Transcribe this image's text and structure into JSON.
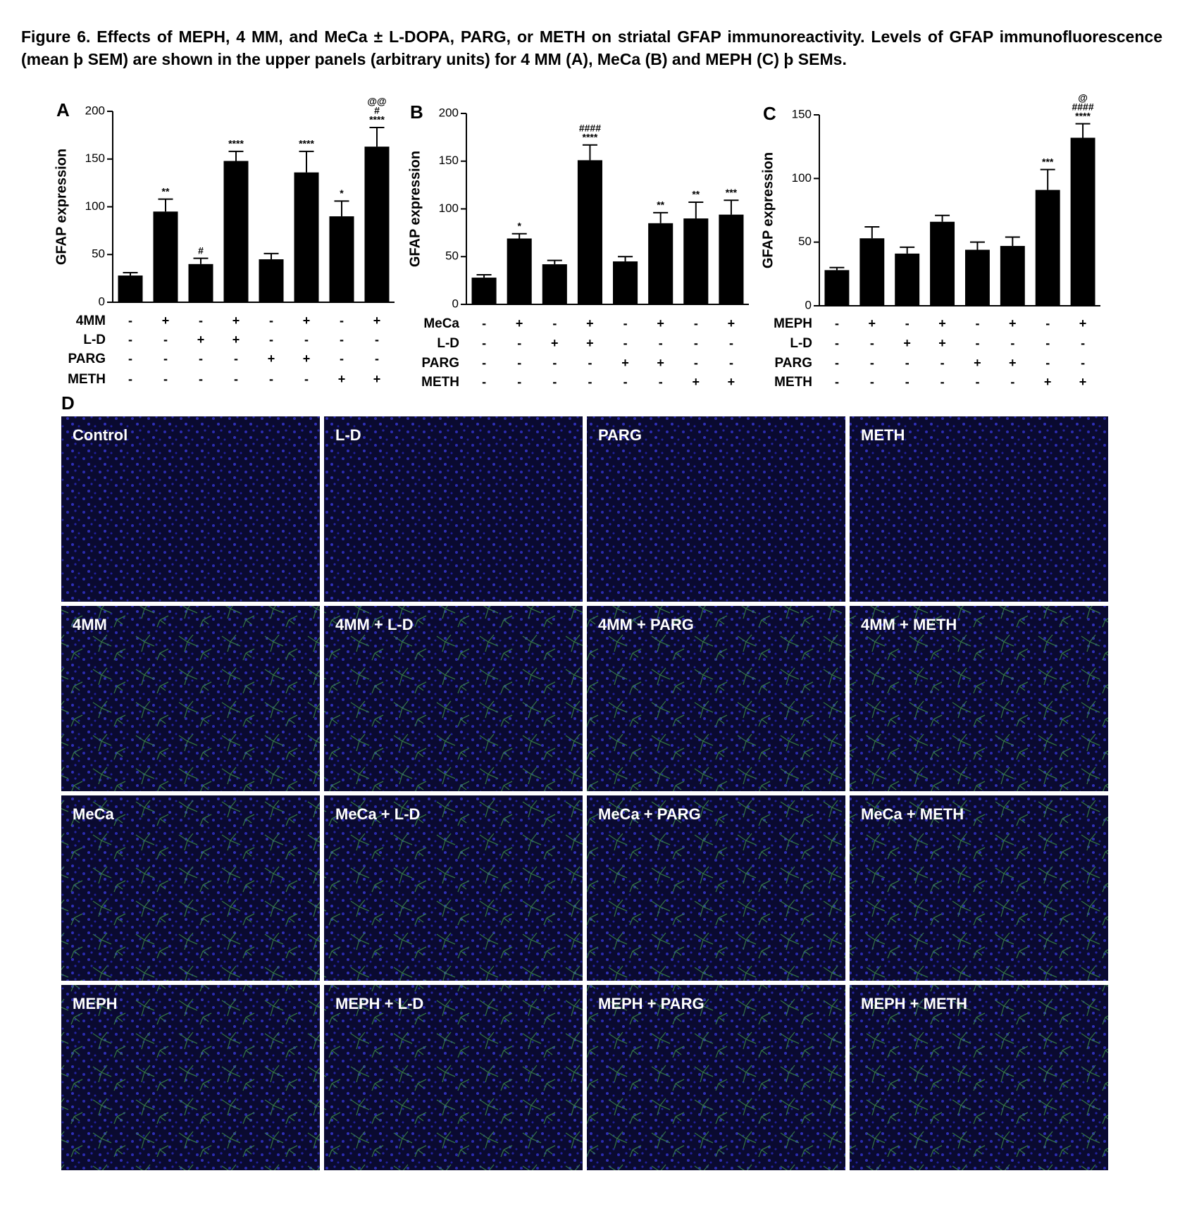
{
  "caption": "Figure 6. Effects of MEPH, 4 MM, and MeCa ± L-DOPA, PARG, or METH on striatal GFAP immunoreactivity. Levels of GFAP immunofluorescence (mean þ SEM) are shown in the upper panels (arbitrary units) for 4 MM (A), MeCa (B) and MEPH (C) þ SEMs.",
  "chart_data": [
    {
      "type": "bar",
      "panel": "A",
      "y_label": "GFAP expression",
      "color": "#000000",
      "values": [
        28,
        95,
        40,
        148,
        45,
        136,
        90,
        163
      ],
      "errors": [
        3,
        13,
        6,
        10,
        6,
        22,
        16,
        20
      ],
      "annotations": [
        null,
        [
          "**"
        ],
        [
          "#"
        ],
        [
          "****"
        ],
        null,
        [
          "****"
        ],
        [
          "*"
        ],
        [
          "@@",
          "#",
          "****"
        ]
      ],
      "ylim": [
        0,
        200
      ],
      "yticks": [
        0,
        50,
        100,
        150,
        200
      ],
      "conditions": [
        {
          "name": "4MM",
          "marks": [
            "-",
            "+",
            "-",
            "+",
            "-",
            "+",
            "-",
            "+"
          ]
        },
        {
          "name": "L-D",
          "marks": [
            "-",
            "-",
            "+",
            "+",
            "-",
            "-",
            "-",
            "-"
          ]
        },
        {
          "name": "PARG",
          "marks": [
            "-",
            "-",
            "-",
            "-",
            "+",
            "+",
            "-",
            "-"
          ]
        },
        {
          "name": "METH",
          "marks": [
            "-",
            "-",
            "-",
            "-",
            "-",
            "-",
            "+",
            "+"
          ]
        }
      ]
    },
    {
      "type": "bar",
      "panel": "B",
      "y_label": "GFAP expression",
      "color": "#000000",
      "values": [
        28,
        69,
        42,
        151,
        45,
        85,
        90,
        94
      ],
      "errors": [
        3,
        5,
        4,
        16,
        5,
        11,
        17,
        15
      ],
      "annotations": [
        null,
        [
          "*"
        ],
        null,
        [
          "####",
          "****"
        ],
        null,
        [
          "**"
        ],
        [
          "**"
        ],
        [
          "***"
        ]
      ],
      "ylim": [
        0,
        200
      ],
      "yticks": [
        0,
        50,
        100,
        150,
        200
      ],
      "conditions": [
        {
          "name": "MeCa",
          "marks": [
            "-",
            "+",
            "-",
            "+",
            "-",
            "+",
            "-",
            "+"
          ]
        },
        {
          "name": "L-D",
          "marks": [
            "-",
            "-",
            "+",
            "+",
            "-",
            "-",
            "-",
            "-"
          ]
        },
        {
          "name": "PARG",
          "marks": [
            "-",
            "-",
            "-",
            "-",
            "+",
            "+",
            "-",
            "-"
          ]
        },
        {
          "name": "METH",
          "marks": [
            "-",
            "-",
            "-",
            "-",
            "-",
            "-",
            "+",
            "+"
          ]
        }
      ]
    },
    {
      "type": "bar",
      "panel": "C",
      "y_label": "GFAP expression",
      "color": "#000000",
      "values": [
        28,
        53,
        41,
        66,
        44,
        47,
        91,
        132
      ],
      "errors": [
        2,
        9,
        5,
        5,
        6,
        7,
        16,
        11
      ],
      "annotations": [
        null,
        null,
        null,
        null,
        null,
        null,
        [
          "***"
        ],
        [
          "@",
          "####",
          "****"
        ]
      ],
      "ylim": [
        0,
        150
      ],
      "yticks": [
        0,
        50,
        100,
        150
      ],
      "conditions": [
        {
          "name": "MEPH",
          "marks": [
            "-",
            "+",
            "-",
            "+",
            "-",
            "+",
            "-",
            "+"
          ]
        },
        {
          "name": "L-D",
          "marks": [
            "-",
            "-",
            "+",
            "+",
            "-",
            "-",
            "-",
            "-"
          ]
        },
        {
          "name": "PARG",
          "marks": [
            "-",
            "-",
            "-",
            "-",
            "+",
            "+",
            "-",
            "-"
          ]
        },
        {
          "name": "METH",
          "marks": [
            "-",
            "-",
            "-",
            "-",
            "-",
            "-",
            "+",
            "+"
          ]
        }
      ]
    }
  ],
  "panel_d": {
    "label": "D",
    "images": [
      "Control",
      "L-D",
      "PARG",
      "METH",
      "4MM",
      "4MM + L-D",
      "4MM + PARG",
      "4MM + METH",
      "MeCa",
      "MeCa + L-D",
      "MeCa + PARG",
      "MeCa + METH",
      "MEPH",
      "MEPH + L-D",
      "MEPH + PARG",
      "MEPH + METH"
    ]
  }
}
